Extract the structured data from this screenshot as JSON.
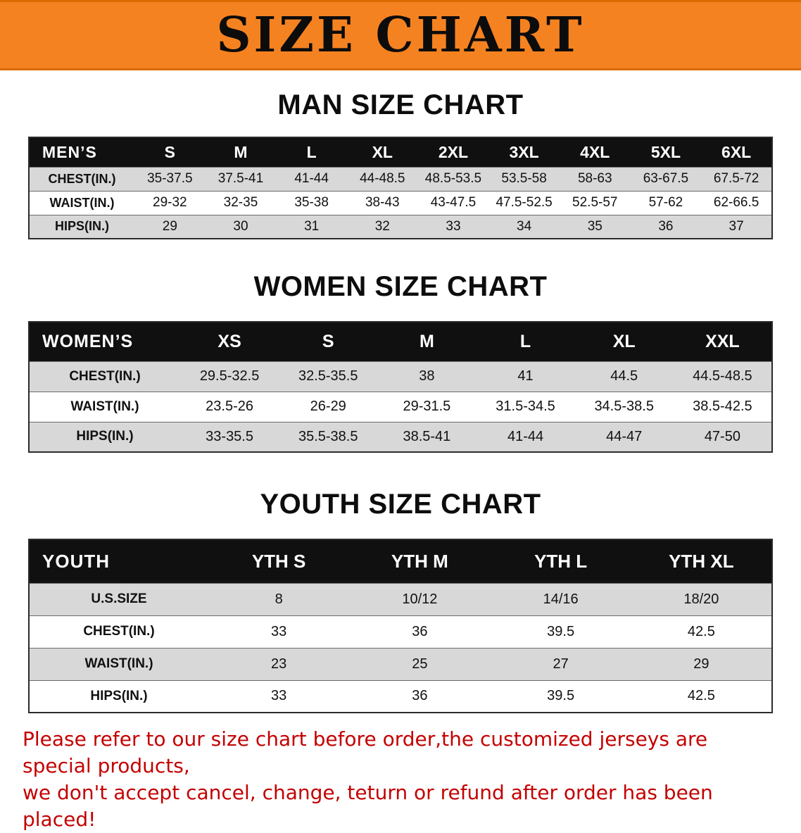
{
  "banner": {
    "title": "SIZE CHART",
    "bg_color": "#F58220",
    "text_color": "#0C0C0C"
  },
  "sections": [
    {
      "id": "men",
      "heading": "MAN SIZE CHART",
      "header": [
        "MEN’S",
        "S",
        "M",
        "L",
        "XL",
        "2XL",
        "3XL",
        "4XL",
        "5XL",
        "6XL"
      ],
      "rows": [
        [
          "CHEST(IN.)",
          "35-37.5",
          "37.5-41",
          "41-44",
          "44-48.5",
          "48.5-53.5",
          "53.5-58",
          "58-63",
          "63-67.5",
          "67.5-72"
        ],
        [
          "WAIST(IN.)",
          "29-32",
          "32-35",
          "35-38",
          "38-43",
          "43-47.5",
          "47.5-52.5",
          "52.5-57",
          "57-62",
          "62-66.5"
        ],
        [
          "HIPS(IN.)",
          "29",
          "30",
          "31",
          "32",
          "33",
          "34",
          "35",
          "36",
          "37"
        ]
      ]
    },
    {
      "id": "women",
      "heading": "WOMEN SIZE CHART",
      "header": [
        "WOMEN’S",
        "XS",
        "S",
        "M",
        "L",
        "XL",
        "XXL"
      ],
      "rows": [
        [
          "CHEST(IN.)",
          "29.5-32.5",
          "32.5-35.5",
          "38",
          "41",
          "44.5",
          "44.5-48.5"
        ],
        [
          "WAIST(IN.)",
          "23.5-26",
          "26-29",
          "29-31.5",
          "31.5-34.5",
          "34.5-38.5",
          "38.5-42.5"
        ],
        [
          "HIPS(IN.)",
          "33-35.5",
          "35.5-38.5",
          "38.5-41",
          "41-44",
          "44-47",
          "47-50"
        ]
      ]
    },
    {
      "id": "youth",
      "heading": "YOUTH SIZE CHART",
      "header": [
        "YOUTH",
        "YTH S",
        "YTH M",
        "YTH L",
        "YTH XL"
      ],
      "rows": [
        [
          "U.S.SIZE",
          "8",
          "10/12",
          "14/16",
          "18/20"
        ],
        [
          "CHEST(IN.)",
          "33",
          "36",
          "39.5",
          "42.5"
        ],
        [
          "WAIST(IN.)",
          "23",
          "25",
          "27",
          "29"
        ],
        [
          "HIPS(IN.)",
          "33",
          "36",
          "39.5",
          "42.5"
        ]
      ]
    }
  ],
  "footer": {
    "lines": [
      "Please refer to our size chart before order,the customized jerseys are special products,",
      "we don't accept cancel, change, teturn or refund after order has been placed!"
    ],
    "text_color": "#C40000"
  },
  "colors": {
    "table_header_bg": "#101010",
    "table_header_text": "#FFFFFF",
    "row_alt_bg": "#D8D8D8",
    "row_bg": "#FFFFFF"
  }
}
